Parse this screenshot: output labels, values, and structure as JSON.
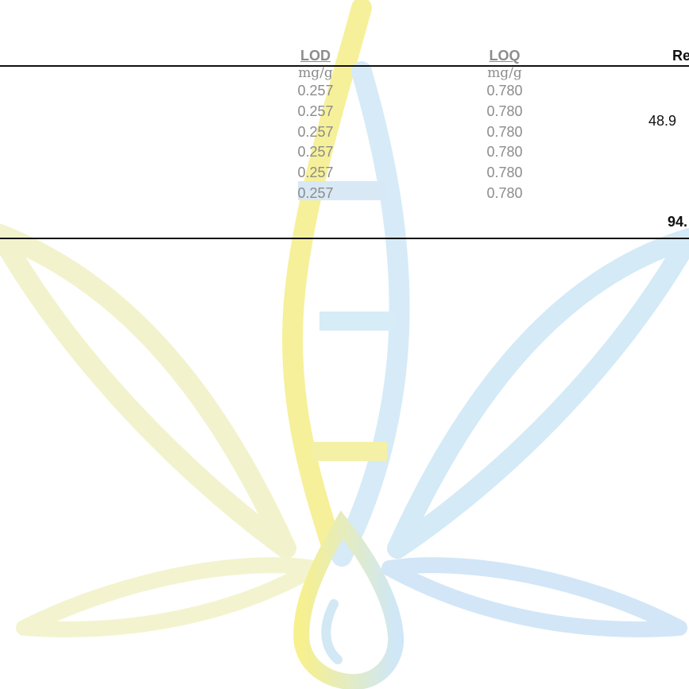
{
  "table": {
    "lod": {
      "header": "LOD",
      "unit": "mg/g",
      "values": [
        "0.257",
        "0.257",
        "0.257",
        "0.257",
        "0.257",
        "0.257"
      ]
    },
    "loq": {
      "header": "LOQ",
      "unit": "mg/g",
      "values": [
        "0.780",
        "0.780",
        "0.780",
        "0.780",
        "0.780",
        "0.780"
      ]
    },
    "result": {
      "header": "Re",
      "row2_value": "48.9",
      "total": "94."
    }
  },
  "watermark": {
    "icon": "cannabis-leaf-droplet-logo",
    "colors": {
      "yellow_green": "#f2f3c9",
      "yellow": "#f7f08e",
      "light_blue": "#cdeaf8",
      "periwinkle": "#d3def3"
    }
  }
}
